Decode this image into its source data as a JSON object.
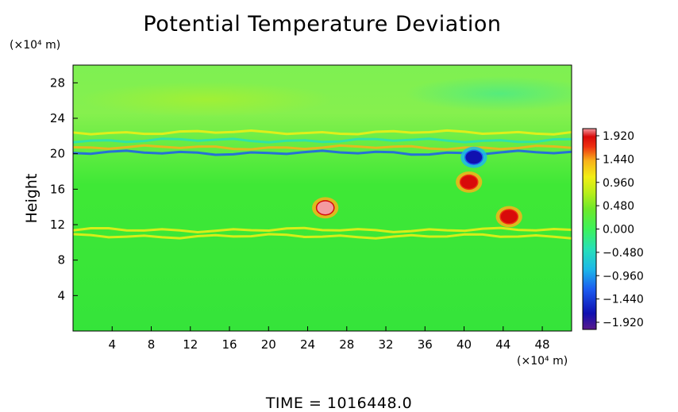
{
  "chart_data": {
    "type": "heatmap",
    "title": "Potential Temperature Deviation",
    "ylabel": "Height",
    "xlabel": "",
    "x_unit": "(×10⁴ m)",
    "y_unit": "(×10⁴ m)",
    "x_ticks": [
      4,
      8,
      12,
      16,
      20,
      24,
      28,
      32,
      36,
      40,
      44,
      48
    ],
    "y_ticks": [
      4,
      8,
      12,
      16,
      20,
      24,
      28
    ],
    "xlim": [
      0,
      51
    ],
    "ylim": [
      0,
      30
    ],
    "grid": false,
    "colorbar": {
      "labels": [
        "1.920",
        "1.440",
        "0.960",
        "0.480",
        "0.000",
        "−0.480",
        "−0.960",
        "−1.440",
        "−1.920"
      ],
      "min": -1.92,
      "max": 1.92,
      "colors": [
        "#5a1a8c",
        "#1010b0",
        "#1c5cf0",
        "#1cb8e8",
        "#27e0b8",
        "#3df25a",
        "#3fe81f",
        "#b8ee1a",
        "#f2ee14",
        "#f8b11a",
        "#ee3010",
        "#d80a0a",
        "#f49aa0"
      ]
    },
    "features": [
      {
        "type": "band",
        "y": 22.4,
        "x0": 0,
        "x1": 51,
        "value": 0.7
      },
      {
        "type": "band",
        "y": 21.5,
        "x0": 0,
        "x1": 51,
        "value": -0.7
      },
      {
        "type": "band",
        "y": 20.7,
        "x0": 0,
        "x1": 51,
        "value": 1.0
      },
      {
        "type": "band",
        "y": 20.1,
        "x0": 0,
        "x1": 51,
        "value": -1.3
      },
      {
        "type": "band",
        "y": 11.4,
        "x0": 0,
        "x1": 51,
        "value": 0.5
      },
      {
        "type": "band",
        "y": 10.7,
        "x0": 0,
        "x1": 51,
        "value": 0.6
      },
      {
        "type": "blob",
        "x": 25.8,
        "y": 13.9,
        "value": 1.92
      },
      {
        "type": "blob",
        "x": 40.5,
        "y": 16.8,
        "value": 1.5
      },
      {
        "type": "blob",
        "x": 44.6,
        "y": 12.9,
        "value": 1.6
      },
      {
        "type": "blob",
        "x": 41.0,
        "y": 19.6,
        "value": -1.6
      }
    ]
  },
  "time_label": "TIME  =  1016448.0"
}
